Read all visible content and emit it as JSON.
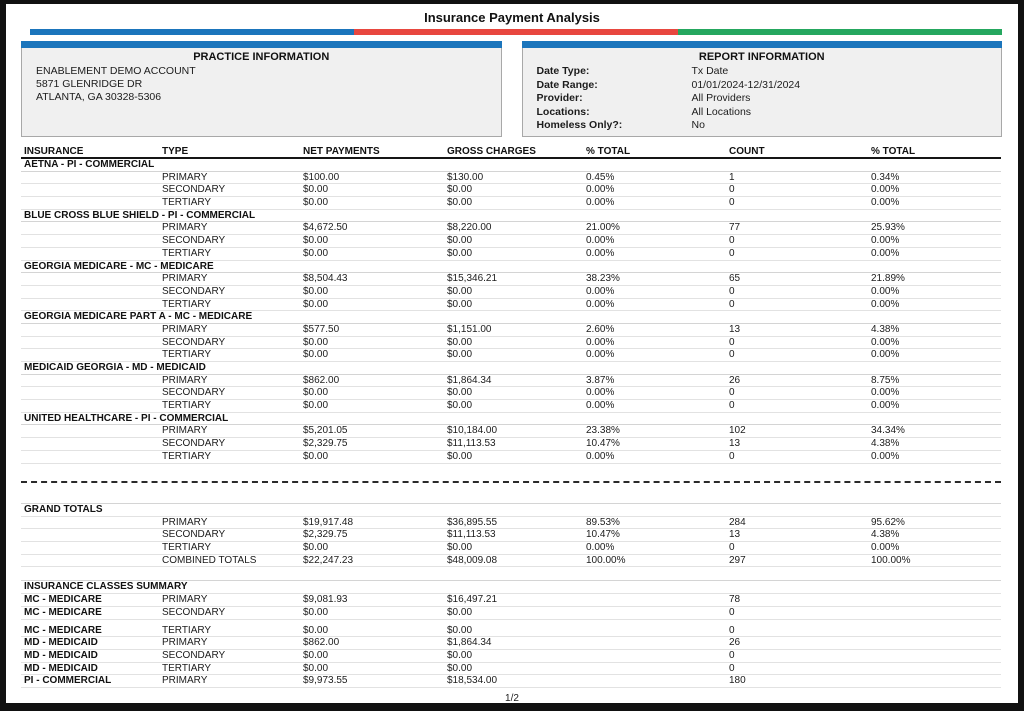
{
  "title": "Insurance Payment Analysis",
  "accent_colors": {
    "blue": "#1b75bc",
    "red": "#e8473f",
    "green": "#25a75f"
  },
  "practice_info": {
    "header": "PRACTICE INFORMATION",
    "lines": [
      "ENABLEMENT DEMO ACCOUNT",
      "5871 GLENRIDGE DR",
      "ATLANTA, GA 30328-5306"
    ]
  },
  "report_info": {
    "header": "REPORT INFORMATION",
    "fields": [
      {
        "label": "Date Type:",
        "value": "Tx Date"
      },
      {
        "label": "Date Range:",
        "value": "01/01/2024-12/31/2024"
      },
      {
        "label": "Provider:",
        "value": "All Providers"
      },
      {
        "label": "Locations:",
        "value": "All Locations"
      },
      {
        "label": "Homeless Only?:",
        "value": "No"
      }
    ]
  },
  "table": {
    "columns": [
      "INSURANCE",
      "TYPE",
      "NET PAYMENTS",
      "GROSS CHARGES",
      "% TOTAL",
      "COUNT",
      "% TOTAL"
    ],
    "groups": [
      {
        "name": "AETNA - PI - COMMERCIAL",
        "rows": [
          [
            "PRIMARY",
            "$100.00",
            "$130.00",
            "0.45%",
            "1",
            "0.34%"
          ],
          [
            "SECONDARY",
            "$0.00",
            "$0.00",
            "0.00%",
            "0",
            "0.00%"
          ],
          [
            "TERTIARY",
            "$0.00",
            "$0.00",
            "0.00%",
            "0",
            "0.00%"
          ]
        ]
      },
      {
        "name": "BLUE CROSS BLUE SHIELD - PI - COMMERCIAL",
        "rows": [
          [
            "PRIMARY",
            "$4,672.50",
            "$8,220.00",
            "21.00%",
            "77",
            "25.93%"
          ],
          [
            "SECONDARY",
            "$0.00",
            "$0.00",
            "0.00%",
            "0",
            "0.00%"
          ],
          [
            "TERTIARY",
            "$0.00",
            "$0.00",
            "0.00%",
            "0",
            "0.00%"
          ]
        ]
      },
      {
        "name": "GEORGIA MEDICARE - MC - MEDICARE",
        "rows": [
          [
            "PRIMARY",
            "$8,504.43",
            "$15,346.21",
            "38.23%",
            "65",
            "21.89%"
          ],
          [
            "SECONDARY",
            "$0.00",
            "$0.00",
            "0.00%",
            "0",
            "0.00%"
          ],
          [
            "TERTIARY",
            "$0.00",
            "$0.00",
            "0.00%",
            "0",
            "0.00%"
          ]
        ]
      },
      {
        "name": "GEORGIA MEDICARE PART A - MC - MEDICARE",
        "rows": [
          [
            "PRIMARY",
            "$577.50",
            "$1,151.00",
            "2.60%",
            "13",
            "4.38%"
          ],
          [
            "SECONDARY",
            "$0.00",
            "$0.00",
            "0.00%",
            "0",
            "0.00%"
          ],
          [
            "TERTIARY",
            "$0.00",
            "$0.00",
            "0.00%",
            "0",
            "0.00%"
          ]
        ]
      },
      {
        "name": "MEDICAID GEORGIA - MD - MEDICAID",
        "rows": [
          [
            "PRIMARY",
            "$862.00",
            "$1,864.34",
            "3.87%",
            "26",
            "8.75%"
          ],
          [
            "SECONDARY",
            "$0.00",
            "$0.00",
            "0.00%",
            "0",
            "0.00%"
          ],
          [
            "TERTIARY",
            "$0.00",
            "$0.00",
            "0.00%",
            "0",
            "0.00%"
          ]
        ]
      },
      {
        "name": "UNITED HEALTHCARE - PI - COMMERCIAL",
        "rows": [
          [
            "PRIMARY",
            "$5,201.05",
            "$10,184.00",
            "23.38%",
            "102",
            "34.34%"
          ],
          [
            "SECONDARY",
            "$2,329.75",
            "$11,113.53",
            "10.47%",
            "13",
            "4.38%"
          ],
          [
            "TERTIARY",
            "$0.00",
            "$0.00",
            "0.00%",
            "0",
            "0.00%"
          ]
        ]
      }
    ]
  },
  "grand_totals": {
    "header": "GRAND TOTALS",
    "rows": [
      [
        "PRIMARY",
        "$19,917.48",
        "$36,895.55",
        "89.53%",
        "284",
        "95.62%"
      ],
      [
        "SECONDARY",
        "$2,329.75",
        "$11,113.53",
        "10.47%",
        "13",
        "4.38%"
      ],
      [
        "TERTIARY",
        "$0.00",
        "$0.00",
        "0.00%",
        "0",
        "0.00%"
      ],
      [
        "COMBINED TOTALS",
        "$22,247.23",
        "$48,009.08",
        "100.00%",
        "297",
        "100.00%"
      ]
    ]
  },
  "classes_summary": {
    "header": "INSURANCE CLASSES SUMMARY",
    "rows": [
      [
        "MC - MEDICARE",
        "PRIMARY",
        "$9,081.93",
        "$16,497.21",
        "",
        "78",
        ""
      ],
      [
        "MC - MEDICARE",
        "SECONDARY",
        "$0.00",
        "$0.00",
        "",
        "0",
        ""
      ],
      [
        "MC - MEDICARE",
        "TERTIARY",
        "$0.00",
        "$0.00",
        "",
        "0",
        ""
      ],
      [
        "MD - MEDICAID",
        "PRIMARY",
        "$862.00",
        "$1,864.34",
        "",
        "26",
        ""
      ],
      [
        "MD - MEDICAID",
        "SECONDARY",
        "$0.00",
        "$0.00",
        "",
        "0",
        ""
      ],
      [
        "MD - MEDICAID",
        "TERTIARY",
        "$0.00",
        "$0.00",
        "",
        "0",
        ""
      ],
      [
        "PI - COMMERCIAL",
        "PRIMARY",
        "$9,973.55",
        "$18,534.00",
        "",
        "180",
        ""
      ]
    ]
  },
  "footer": {
    "page": "1/2"
  }
}
